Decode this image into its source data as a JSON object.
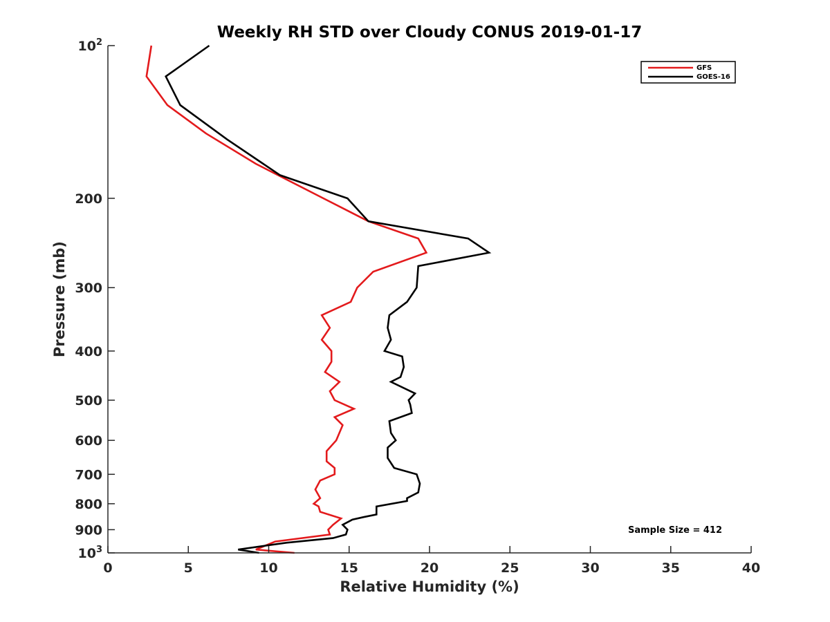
{
  "chart_data": {
    "type": "line",
    "title": "Weekly RH STD over Cloudy CONUS 2019-01-17",
    "xlabel": "Relative Humidity (%)",
    "ylabel": "Pressure (mb)",
    "xlim": [
      0,
      40
    ],
    "ylim": [
      100,
      1000
    ],
    "yscale": "log",
    "y_reversed": true,
    "x_ticks": [
      0,
      5,
      10,
      15,
      20,
      25,
      30,
      35,
      40
    ],
    "x_tick_labels": [
      "0",
      "5",
      "10",
      "15",
      "20",
      "25",
      "30",
      "35",
      "40"
    ],
    "y_ticks": [
      100,
      200,
      300,
      400,
      500,
      600,
      700,
      800,
      900,
      1000
    ],
    "y_tick_labels": [
      {
        "base": "10",
        "exp": "2"
      },
      {
        "base": "200",
        "exp": ""
      },
      {
        "base": "300",
        "exp": ""
      },
      {
        "base": "400",
        "exp": ""
      },
      {
        "base": "500",
        "exp": ""
      },
      {
        "base": "600",
        "exp": ""
      },
      {
        "base": "700",
        "exp": ""
      },
      {
        "base": "800",
        "exp": ""
      },
      {
        "base": "900",
        "exp": ""
      },
      {
        "base": "10",
        "exp": "3"
      }
    ],
    "grid": false,
    "legend_position": "top-right",
    "annotation": "Sample Size = 412",
    "series": [
      {
        "name": "GFS",
        "color": "#e31a1c",
        "x": [
          2.7,
          2.4,
          3.7,
          6.1,
          9.2,
          13.4,
          16.2,
          19.3,
          19.8,
          16.5,
          15.5,
          15.1,
          13.3,
          13.8,
          13.3,
          13.9,
          13.9,
          13.5,
          14.4,
          13.8,
          14.1,
          15.3,
          14.1,
          14.6,
          14.2,
          13.6,
          13.6,
          14.1,
          14.1,
          13.2,
          12.9,
          13.2,
          12.8,
          13.1,
          13.2,
          14.5,
          14.0,
          13.7,
          13.8,
          10.4,
          9.2,
          11.6
        ],
        "y": [
          100,
          115,
          131,
          149,
          171,
          200,
          222,
          240,
          256,
          279,
          300,
          320,
          340,
          360,
          380,
          400,
          420,
          440,
          460,
          480,
          500,
          520,
          540,
          560,
          600,
          630,
          660,
          680,
          700,
          720,
          750,
          780,
          800,
          810,
          830,
          855,
          880,
          900,
          920,
          950,
          985,
          1000
        ]
      },
      {
        "name": "GOES-16",
        "color": "#000000",
        "x": [
          6.3,
          3.6,
          4.5,
          7.4,
          10.7,
          14.9,
          16.2,
          22.4,
          23.7,
          19.3,
          19.2,
          18.6,
          17.5,
          17.4,
          17.6,
          17.2,
          18.3,
          18.4,
          18.2,
          17.6,
          19.1,
          18.7,
          18.8,
          18.9,
          17.5,
          17.6,
          17.9,
          17.4,
          17.4,
          17.8,
          19.2,
          19.4,
          19.3,
          18.6,
          18.6,
          16.7,
          16.7,
          15.9,
          15.2,
          14.6,
          14.9,
          14.8,
          14.0,
          11.1,
          8.1,
          9.4
        ],
        "y": [
          100,
          115,
          131,
          153,
          180,
          200,
          222,
          240,
          256,
          272,
          300,
          320,
          340,
          360,
          380,
          400,
          410,
          430,
          450,
          460,
          485,
          500,
          510,
          530,
          550,
          580,
          600,
          620,
          650,
          680,
          700,
          730,
          760,
          780,
          790,
          810,
          840,
          850,
          860,
          880,
          900,
          920,
          935,
          955,
          985,
          1000
        ]
      }
    ]
  }
}
